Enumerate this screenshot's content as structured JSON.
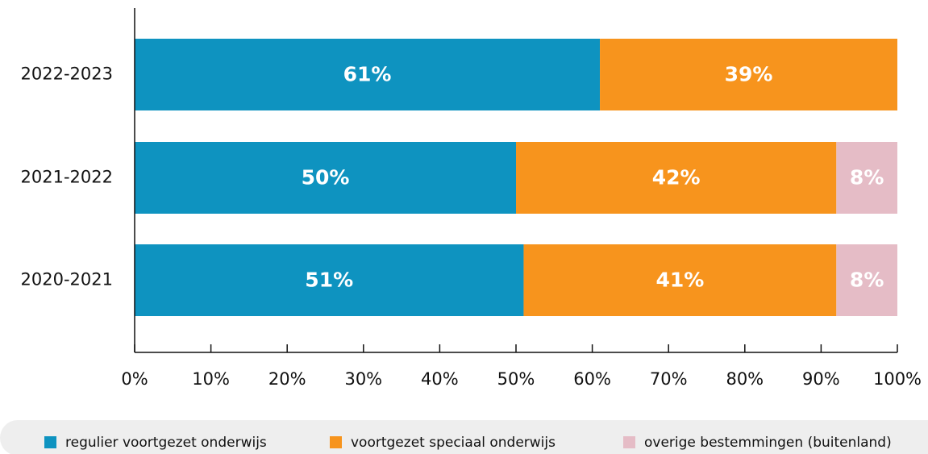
{
  "chart_data": {
    "type": "stacked-bar-horizontal",
    "categories": [
      "2022-2023",
      "2021-2022",
      "2020-2021"
    ],
    "series": [
      {
        "name": "regulier voortgezet onderwijs",
        "color": "#0e93c0",
        "values": [
          61,
          50,
          51
        ],
        "value_labels": [
          "61%",
          "50%",
          "51%"
        ]
      },
      {
        "name": "voortgezet speciaal onderwijs",
        "color": "#f7941d",
        "values": [
          39,
          42,
          41
        ],
        "value_labels": [
          "39%",
          "42%",
          "41%"
        ]
      },
      {
        "name": "overige bestemmingen (buitenland)",
        "color": "#e5bcc6",
        "values": [
          null,
          8,
          8
        ],
        "value_labels": [
          null,
          "8%",
          "8%"
        ]
      }
    ],
    "xlim": [
      0,
      100
    ],
    "xticks": [
      {
        "value": 0,
        "label": "0%"
      },
      {
        "value": 10,
        "label": "10%"
      },
      {
        "value": 20,
        "label": "20%"
      },
      {
        "value": 30,
        "label": "30%"
      },
      {
        "value": 40,
        "label": "40%"
      },
      {
        "value": 50,
        "label": "50%"
      },
      {
        "value": 60,
        "label": "60%"
      },
      {
        "value": 70,
        "label": "70%"
      },
      {
        "value": 80,
        "label": "80%"
      },
      {
        "value": 90,
        "label": "90%"
      },
      {
        "value": 100,
        "label": "100%"
      }
    ],
    "legend": "bottom"
  }
}
